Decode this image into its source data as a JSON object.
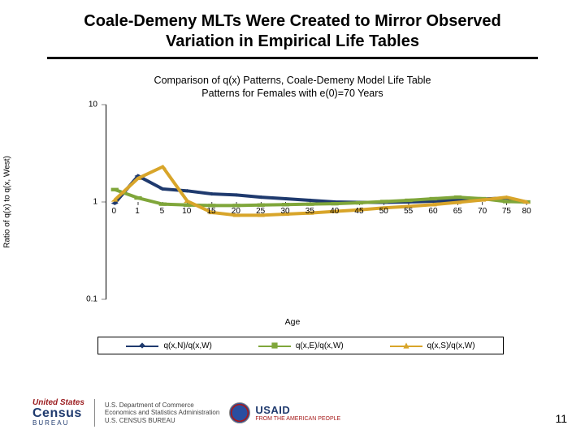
{
  "slide": {
    "title": "Coale-Demeny MLTs Were Created to Mirror Observed Variation in Empirical Life Tables",
    "page_number": "11"
  },
  "chart": {
    "type": "line",
    "title_line1": "Comparison of q(x) Patterns, Coale-Demeny Model Life Table",
    "title_line2": "Patterns for Females with e(0)=70 Years",
    "x_label": "Age",
    "y_label": "Ratio of q(x) to q(x, West)",
    "x_categories": [
      "0",
      "1",
      "5",
      "10",
      "15",
      "20",
      "25",
      "30",
      "35",
      "40",
      "45",
      "50",
      "55",
      "60",
      "65",
      "70",
      "75",
      "80"
    ],
    "x_positions_pct": [
      2,
      7.6,
      13.5,
      19.4,
      25.3,
      31.2,
      37.1,
      43.0,
      48.9,
      54.8,
      60.7,
      66.6,
      72.5,
      78.4,
      84.3,
      90.2,
      96.0,
      100.8
    ],
    "y_scale": "log",
    "y_ticks": [
      {
        "label": "10",
        "pct": 0
      },
      {
        "label": "1",
        "pct": 50
      },
      {
        "label": "0.1",
        "pct": 100
      }
    ],
    "background_color": "#ffffff",
    "axis_color": "#000000",
    "title_fontsize": 12.5,
    "label_fontsize": 10,
    "tick_fontsize": 10,
    "line_width": 1.5,
    "marker_size": 5,
    "series": [
      {
        "name": "q(x,N)/q(x,W)",
        "color": "#1f3a6e",
        "marker": "diamond",
        "values": [
          0.97,
          1.85,
          1.36,
          1.3,
          1.21,
          1.18,
          1.12,
          1.08,
          1.04,
          1.0,
          0.99,
          0.99,
          1.0,
          1.02,
          1.04,
          1.07,
          1.1,
          1.0
        ]
      },
      {
        "name": "q(x,E)/q(x,W)",
        "color": "#7fa63a",
        "marker": "square",
        "values": [
          1.34,
          1.1,
          0.95,
          0.93,
          0.92,
          0.92,
          0.93,
          0.94,
          0.95,
          0.96,
          0.98,
          1.01,
          1.04,
          1.08,
          1.12,
          1.08,
          1.01,
          1.0
        ]
      },
      {
        "name": "q(x,S)/q(x,W)",
        "color": "#d8a52a",
        "marker": "triangle",
        "values": [
          1.05,
          1.75,
          2.3,
          1.02,
          0.78,
          0.73,
          0.73,
          0.75,
          0.77,
          0.8,
          0.83,
          0.87,
          0.9,
          0.94,
          0.99,
          1.05,
          1.12,
          1.0
        ]
      }
    ]
  },
  "footer": {
    "census_us": "United States",
    "census_name": "Census",
    "census_bureau": "BUREAU",
    "doc_line1": "U.S. Department of Commerce",
    "doc_line2": "Economics and Statistics Administration",
    "doc_line3": "U.S. CENSUS BUREAU",
    "usaid_name": "USAID",
    "usaid_tagline": "FROM THE AMERICAN PEOPLE"
  }
}
